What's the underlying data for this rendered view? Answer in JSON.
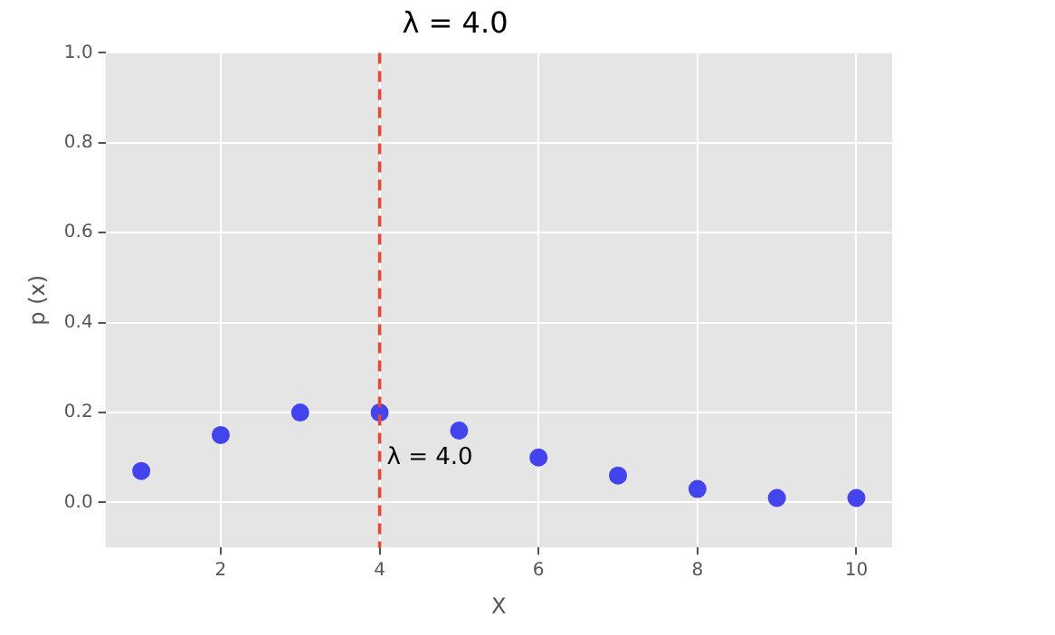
{
  "chart_data": {
    "type": "scatter",
    "title": "λ = 4.0",
    "xlabel": "X",
    "ylabel": "p (x)",
    "x": [
      1,
      2,
      3,
      4,
      5,
      6,
      7,
      8,
      9,
      10
    ],
    "series": [
      {
        "color": "#4444ee",
        "values": [
          0.07,
          0.15,
          0.2,
          0.2,
          0.16,
          0.1,
          0.06,
          0.03,
          0.01,
          0.01
        ]
      }
    ],
    "xlim": [
      0.55,
      10.45
    ],
    "xticks": [
      2,
      4,
      6,
      8,
      10
    ],
    "ylim": [
      -0.1,
      1.0
    ],
    "yticks": [
      {
        "value": 0,
        "label": "0.0"
      },
      0.2,
      0.4,
      0.6,
      0.8,
      {
        "value": 1,
        "label": "1.0"
      }
    ],
    "ref_lines": [
      {
        "axis": "x",
        "value": 4,
        "color": "#e24a33",
        "line_style": "dashed"
      }
    ],
    "annotations": [
      {
        "text": "λ = 4.0",
        "x": 4,
        "y": 0.1
      }
    ],
    "grid": true,
    "legend": false,
    "marker": "circle"
  }
}
